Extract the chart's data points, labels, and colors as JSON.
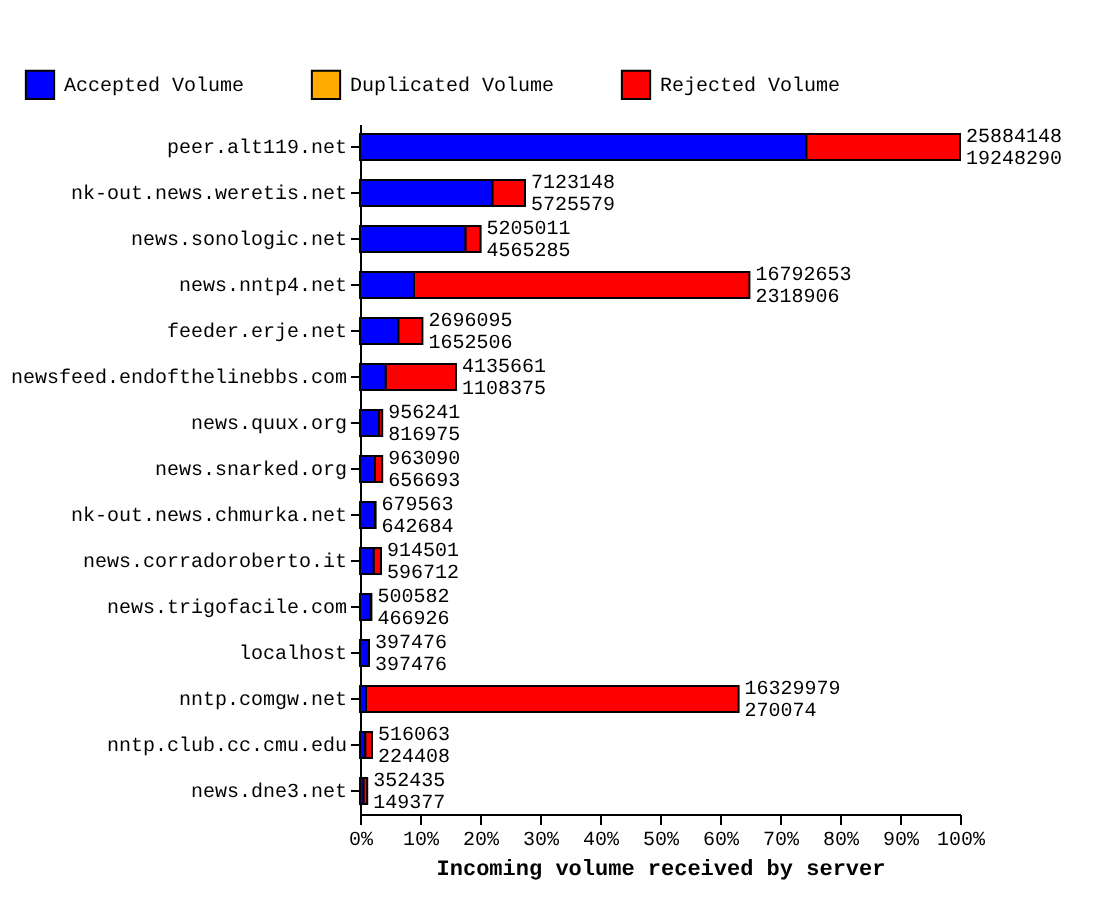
{
  "chart_data": {
    "type": "bar",
    "orientation": "horizontal",
    "stacked": true,
    "xlabel": "Incoming volume received by server",
    "legend": "top",
    "grid": false,
    "categories": [
      "peer.alt119.net",
      "nk-out.news.weretis.net",
      "news.sonologic.net",
      "news.nntp4.net",
      "feeder.erje.net",
      "newsfeed.endofthelinebbs.com",
      "news.quux.org",
      "news.snarked.org",
      "nk-out.news.chmurka.net",
      "news.corradoroberto.it",
      "news.trigofacile.com",
      "localhost",
      "nntp.comgw.net",
      "nntp.club.cc.cmu.edu",
      "news.dne3.net"
    ],
    "xlim": [
      0,
      100
    ],
    "xticks": [
      {
        "value": 0,
        "label": "0%"
      },
      {
        "value": 10,
        "label": "10%"
      },
      {
        "value": 20,
        "label": "20%"
      },
      {
        "value": 30,
        "label": "30%"
      },
      {
        "value": 40,
        "label": "40%"
      },
      {
        "value": 50,
        "label": "50%"
      },
      {
        "value": 60,
        "label": "60%"
      },
      {
        "value": 70,
        "label": "70%"
      },
      {
        "value": 80,
        "label": "80%"
      },
      {
        "value": 90,
        "label": "90%"
      },
      {
        "value": 100,
        "label": "100%"
      }
    ],
    "series": [
      {
        "name": "Accepted Volume",
        "color": "#0000ff",
        "values": [
          74.4,
          22.1,
          17.6,
          9.0,
          6.4,
          4.3,
          3.2,
          2.5,
          2.5,
          2.3,
          1.8,
          1.5,
          1.0,
          0.9,
          0.6
        ]
      },
      {
        "name": "Duplicated Volume",
        "color": "#ffaa00",
        "values": [
          0,
          0,
          0,
          0,
          0,
          0,
          0,
          0,
          0,
          0,
          0,
          0,
          0,
          0,
          null
        ]
      },
      {
        "name": "Rejected Volume",
        "color": "#ff0000",
        "values": [
          25.6,
          5.4,
          2.5,
          55.9,
          4.0,
          11.7,
          0.5,
          1.2,
          0.1,
          1.2,
          0.1,
          0,
          62.1,
          1.1,
          0.6
        ]
      }
    ],
    "annotations": [
      {
        "text": "25884148",
        "x": 100,
        "y": "peer.alt119.net"
      },
      {
        "text": "19248290",
        "x": 100,
        "y": "peer.alt119.net"
      },
      {
        "text": "7123148",
        "x": 27.5,
        "y": "nk-out.news.weretis.net"
      },
      {
        "text": "5725579",
        "x": 27.5,
        "y": "nk-out.news.weretis.net"
      },
      {
        "text": "5205011",
        "x": 20.1,
        "y": "news.sonologic.net"
      },
      {
        "text": "4565285",
        "x": 20.1,
        "y": "news.sonologic.net"
      },
      {
        "text": "16792653",
        "x": 64.9,
        "y": "news.nntp4.net"
      },
      {
        "text": "2318906",
        "x": 64.9,
        "y": "news.nntp4.net"
      },
      {
        "text": "2696095",
        "x": 10.4,
        "y": "feeder.erje.net"
      },
      {
        "text": "1652506",
        "x": 10.4,
        "y": "feeder.erje.net"
      },
      {
        "text": "4135661",
        "x": 16.0,
        "y": "newsfeed.endofthelinebbs.com"
      },
      {
        "text": "1108375",
        "x": 16.0,
        "y": "newsfeed.endofthelinebbs.com"
      },
      {
        "text": "956241",
        "x": 3.7,
        "y": "news.quux.org"
      },
      {
        "text": "816975",
        "x": 3.7,
        "y": "news.quux.org"
      },
      {
        "text": "963090",
        "x": 3.7,
        "y": "news.snarked.org"
      },
      {
        "text": "656693",
        "x": 3.7,
        "y": "news.snarked.org"
      },
      {
        "text": "679563",
        "x": 2.6,
        "y": "nk-out.news.chmurka.net"
      },
      {
        "text": "642684",
        "x": 2.6,
        "y": "nk-out.news.chmurka.net"
      },
      {
        "text": "914501",
        "x": 3.5,
        "y": "news.corradoroberto.it"
      },
      {
        "text": "596712",
        "x": 3.5,
        "y": "news.corradoroberto.it"
      },
      {
        "text": "500582",
        "x": 1.9,
        "y": "news.trigofacile.com"
      },
      {
        "text": "466926",
        "x": 1.9,
        "y": "news.trigofacile.com"
      },
      {
        "text": "397476",
        "x": 1.5,
        "y": "localhost"
      },
      {
        "text": "397476",
        "x": 1.5,
        "y": "localhost"
      },
      {
        "text": "16329979",
        "x": 63.1,
        "y": "nntp.comgw.net"
      },
      {
        "text": "270074",
        "x": 63.1,
        "y": "nntp.comgw.net"
      },
      {
        "text": "516063",
        "x": 2.0,
        "y": "nntp.club.cc.cmu.edu"
      },
      {
        "text": "224408",
        "x": 2.0,
        "y": "nntp.club.cc.cmu.edu"
      },
      {
        "text": "352435",
        "x": 1.2,
        "y": "news.dne3.net"
      },
      {
        "text": "149377",
        "x": 1.2,
        "y": "news.dne3.net"
      }
    ]
  }
}
